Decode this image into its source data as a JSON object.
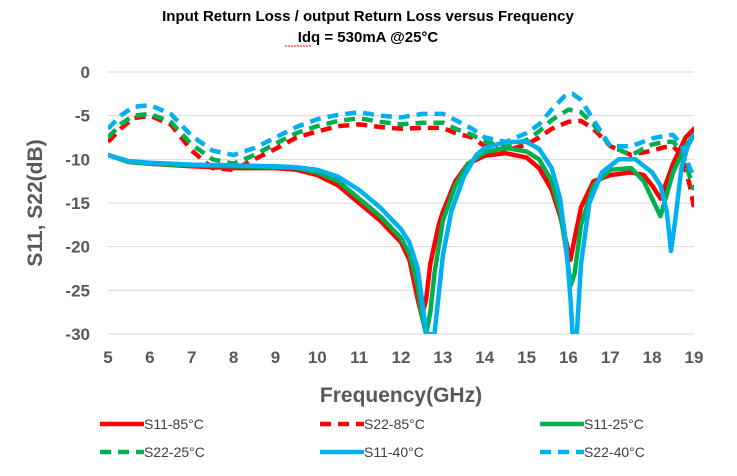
{
  "chart_data": {
    "type": "line",
    "title": "Input Return Loss / output Return Loss versus Frequency",
    "subtitle": "Idq = 530mA @25°C",
    "xlabel": "Frequency(GHz)",
    "ylabel": "S11, S22(dB)",
    "xlim": [
      5,
      19
    ],
    "ylim": [
      -30,
      0
    ],
    "xticks": [
      5,
      6,
      7,
      8,
      9,
      10,
      11,
      12,
      13,
      14,
      15,
      16,
      17,
      18,
      19
    ],
    "yticks": [
      0,
      -5,
      -10,
      -15,
      -20,
      -25,
      -30
    ],
    "grid": "horizontal",
    "legend_position": "bottom",
    "series": [
      {
        "name": "S11-85°C",
        "color": "#ff0000",
        "dash": "solid",
        "x": [
          5.0,
          5.5,
          6.0,
          7.0,
          8.0,
          9.0,
          9.5,
          10.0,
          10.5,
          11.0,
          11.5,
          12.0,
          12.2,
          12.4,
          12.5,
          12.6,
          12.7,
          12.9,
          13.0,
          13.3,
          13.6,
          14.0,
          14.5,
          15.0,
          15.3,
          15.6,
          15.8,
          15.95,
          16.05,
          16.15,
          16.3,
          16.6,
          17.0,
          17.5,
          17.8,
          18.0,
          18.2,
          18.5,
          18.8,
          19.0
        ],
        "y": [
          -9.5,
          -10.3,
          -10.5,
          -10.8,
          -11.0,
          -11.0,
          -11.2,
          -11.8,
          -13.0,
          -15.0,
          -17.0,
          -19.5,
          -21.5,
          -26.0,
          -28.0,
          -26.0,
          -22.0,
          -17.5,
          -16.0,
          -12.5,
          -10.5,
          -9.6,
          -9.3,
          -9.8,
          -11.0,
          -13.5,
          -16.5,
          -19.5,
          -21.5,
          -19.0,
          -15.5,
          -12.5,
          -11.8,
          -11.5,
          -11.8,
          -13.0,
          -14.5,
          -10.5,
          -7.5,
          -6.5
        ]
      },
      {
        "name": "S22-85°C",
        "color": "#ff0000",
        "dash": "dashed",
        "x": [
          5.0,
          5.3,
          5.6,
          6.0,
          6.5,
          7.0,
          7.5,
          8.0,
          8.5,
          9.0,
          9.5,
          10.0,
          10.5,
          11.0,
          11.5,
          12.0,
          12.5,
          13.0,
          13.3,
          13.7,
          14.0,
          14.5,
          15.0,
          15.3,
          15.6,
          16.0,
          16.3,
          16.6,
          17.0,
          17.5,
          18.0,
          18.3,
          18.5,
          18.7,
          18.9,
          19.0
        ],
        "y": [
          -8.0,
          -6.5,
          -5.3,
          -5.0,
          -6.0,
          -9.0,
          -11.0,
          -11.2,
          -10.0,
          -8.8,
          -7.5,
          -6.8,
          -6.2,
          -6.0,
          -6.3,
          -6.5,
          -6.4,
          -6.4,
          -7.0,
          -7.5,
          -8.5,
          -9.0,
          -8.3,
          -7.5,
          -6.5,
          -5.7,
          -5.6,
          -6.5,
          -8.5,
          -9.5,
          -9.0,
          -8.6,
          -8.5,
          -9.5,
          -13.0,
          -15.5
        ]
      },
      {
        "name": "S11-25°C",
        "color": "#00b050",
        "dash": "solid",
        "x": [
          5.0,
          5.5,
          6.0,
          7.0,
          8.0,
          9.0,
          9.5,
          10.0,
          10.5,
          11.0,
          11.5,
          12.0,
          12.2,
          12.4,
          12.5,
          12.6,
          12.7,
          12.8,
          13.0,
          13.3,
          13.6,
          14.0,
          14.5,
          15.0,
          15.3,
          15.6,
          15.8,
          15.95,
          16.05,
          16.15,
          16.3,
          16.6,
          17.0,
          17.5,
          17.8,
          18.0,
          18.2,
          18.5,
          18.8,
          19.0
        ],
        "y": [
          -9.5,
          -10.3,
          -10.5,
          -10.7,
          -10.8,
          -10.9,
          -11.0,
          -11.5,
          -12.5,
          -14.5,
          -16.5,
          -19.0,
          -20.8,
          -24.5,
          -28.0,
          -30.0,
          -27.5,
          -23.0,
          -17.0,
          -13.0,
          -10.5,
          -9.2,
          -8.7,
          -9.1,
          -10.0,
          -12.5,
          -16.0,
          -20.5,
          -24.5,
          -23.0,
          -17.5,
          -13.0,
          -11.2,
          -11.0,
          -12.5,
          -14.5,
          -16.5,
          -11.5,
          -8.5,
          -7.2
        ]
      },
      {
        "name": "S22-25°C",
        "color": "#00b050",
        "dash": "dashed",
        "x": [
          5.0,
          5.3,
          5.6,
          6.0,
          6.5,
          7.0,
          7.5,
          8.0,
          8.5,
          9.0,
          9.5,
          10.0,
          10.5,
          11.0,
          11.5,
          12.0,
          12.5,
          13.0,
          13.3,
          13.7,
          14.0,
          14.5,
          15.0,
          15.3,
          15.6,
          16.0,
          16.3,
          16.6,
          17.0,
          17.5,
          18.0,
          18.3,
          18.5,
          18.7,
          18.9,
          19.0
        ],
        "y": [
          -7.5,
          -6.0,
          -5.0,
          -4.8,
          -5.7,
          -8.3,
          -10.0,
          -10.5,
          -9.5,
          -8.2,
          -7.0,
          -6.2,
          -5.6,
          -5.3,
          -5.7,
          -6.0,
          -5.8,
          -5.8,
          -6.5,
          -7.2,
          -8.0,
          -8.5,
          -7.8,
          -6.8,
          -5.5,
          -4.3,
          -4.6,
          -6.0,
          -8.5,
          -9.5,
          -8.3,
          -8.0,
          -8.0,
          -9.0,
          -12.0,
          -13.5
        ]
      },
      {
        "name": "S11-40°C",
        "color": "#00b0f0",
        "dash": "solid",
        "x": [
          5.0,
          5.5,
          6.0,
          7.0,
          8.0,
          9.0,
          9.5,
          10.0,
          10.5,
          11.0,
          11.5,
          12.0,
          12.2,
          12.4,
          12.5,
          12.6,
          12.7,
          12.8,
          13.0,
          13.2,
          13.5,
          13.8,
          14.0,
          14.5,
          15.0,
          15.3,
          15.6,
          15.8,
          15.95,
          16.05,
          16.1,
          16.2,
          16.3,
          16.5,
          16.8,
          17.2,
          17.6,
          18.0,
          18.2,
          18.35,
          18.45,
          18.55,
          18.7,
          18.85,
          19.0
        ],
        "y": [
          -9.5,
          -10.2,
          -10.4,
          -10.6,
          -10.7,
          -10.8,
          -10.9,
          -11.2,
          -12.0,
          -13.5,
          -15.5,
          -18.0,
          -19.5,
          -22.5,
          -26.0,
          -30.0,
          -30.0,
          -30.0,
          -21.0,
          -16.0,
          -12.0,
          -9.5,
          -8.7,
          -8.0,
          -8.0,
          -8.8,
          -11.0,
          -14.5,
          -20.0,
          -26.0,
          -30.0,
          -30.0,
          -22.0,
          -15.0,
          -11.5,
          -10.0,
          -10.0,
          -11.5,
          -13.0,
          -16.0,
          -20.5,
          -17.0,
          -11.0,
          -8.5,
          -7.2
        ]
      },
      {
        "name": "S22-40°C",
        "color": "#00b0f0",
        "dash": "dashed",
        "x": [
          5.0,
          5.3,
          5.6,
          6.0,
          6.5,
          7.0,
          7.5,
          8.0,
          8.5,
          9.0,
          9.5,
          10.0,
          10.5,
          11.0,
          11.5,
          12.0,
          12.5,
          13.0,
          13.3,
          13.7,
          14.0,
          14.5,
          15.0,
          15.3,
          15.6,
          15.9,
          16.1,
          16.3,
          16.6,
          17.0,
          17.5,
          18.0,
          18.3,
          18.5,
          18.7,
          18.9,
          19.0
        ],
        "y": [
          -6.5,
          -5.0,
          -4.0,
          -3.8,
          -4.8,
          -7.3,
          -9.0,
          -9.5,
          -8.7,
          -7.5,
          -6.3,
          -5.4,
          -4.9,
          -4.6,
          -5.0,
          -5.2,
          -4.8,
          -4.8,
          -5.5,
          -6.5,
          -7.5,
          -8.0,
          -7.0,
          -6.0,
          -4.3,
          -2.8,
          -2.5,
          -3.2,
          -5.5,
          -8.5,
          -8.5,
          -7.6,
          -7.3,
          -7.2,
          -8.3,
          -11.0,
          -12.0
        ]
      }
    ]
  }
}
